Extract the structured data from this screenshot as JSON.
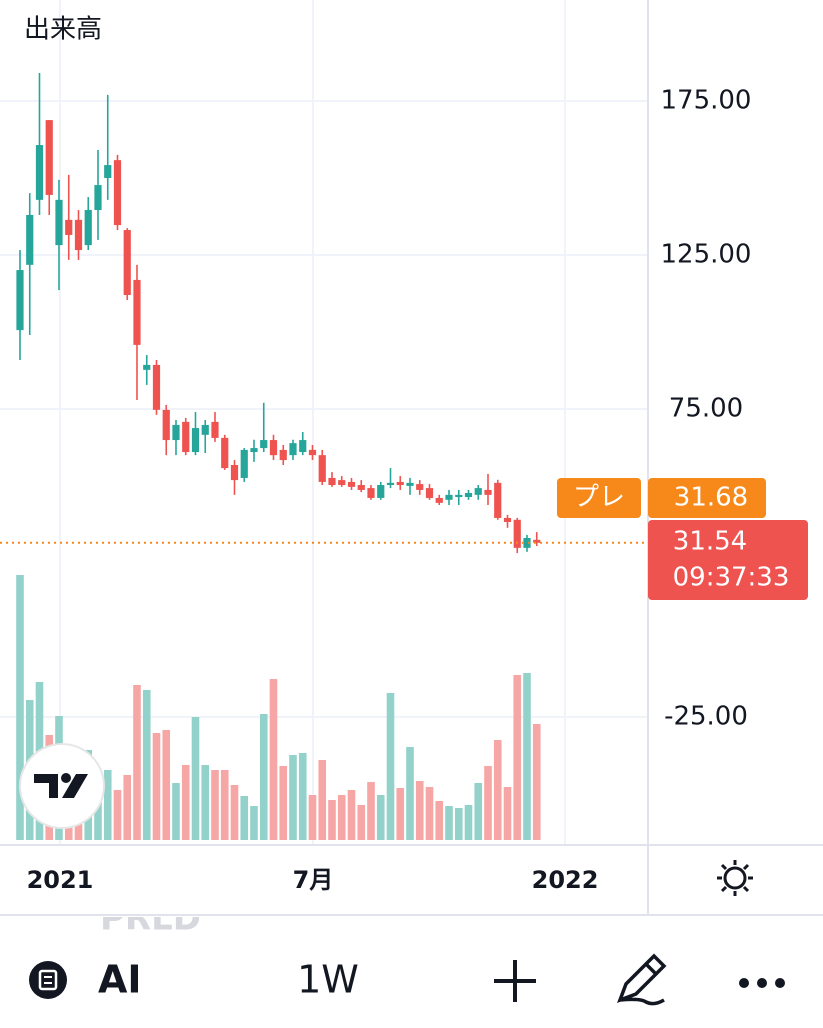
{
  "chart_data": {
    "type": "candlestick",
    "title": "出来高",
    "categories": [
      null,
      null,
      null,
      null,
      null,
      null,
      null,
      null,
      null,
      null,
      null,
      null,
      null,
      null,
      null,
      null,
      null,
      null,
      null,
      null,
      null,
      null,
      null,
      null,
      null,
      null,
      null,
      null,
      null,
      null,
      null,
      null,
      null,
      null,
      null,
      null,
      null,
      null,
      null,
      null,
      null,
      null,
      null,
      null,
      null,
      null,
      null,
      null,
      null,
      null,
      null,
      null,
      null,
      null
    ],
    "open": [
      100.6,
      121.8,
      142.9,
      168.8,
      128.2,
      136.4,
      136.4,
      128.2,
      139.6,
      150,
      155.8,
      133.1,
      116.9,
      87.7,
      89.3,
      74.7,
      64.9,
      70.8,
      61,
      66.6,
      70.8,
      65.6,
      56.8,
      52.6,
      61,
      62.3,
      64.9,
      61.7,
      60,
      61,
      61.7,
      60,
      52.6,
      51.9,
      51.3,
      50.3,
      49.3,
      46.1,
      50.3,
      51.3,
      50,
      50.6,
      49.3,
      46.1,
      45.5,
      46.4,
      46.4,
      47.1,
      48.7,
      51,
      39.6,
      39,
      29.9,
      32.5
    ],
    "high": [
      126.6,
      145.1,
      184.1,
      168.8,
      149.4,
      151,
      139.6,
      143.8,
      159.1,
      177,
      157.5,
      133.7,
      121.8,
      92.5,
      90.9,
      76.3,
      71.4,
      72.1,
      74,
      71.4,
      74,
      66.6,
      58.4,
      62.3,
      65,
      77,
      66.6,
      63.3,
      65,
      67.5,
      63.3,
      61.7,
      54.5,
      53.2,
      52.6,
      51.9,
      50.3,
      51.3,
      55.8,
      53.2,
      52.6,
      51.9,
      50.6,
      47.1,
      48.7,
      48.7,
      48.7,
      50.3,
      53.9,
      52,
      40.6,
      39.6,
      34.1,
      35
    ],
    "low": [
      90.9,
      99,
      138,
      138,
      113.6,
      123.4,
      123.4,
      126.6,
      129.9,
      142.9,
      133.1,
      110.4,
      77.9,
      82.8,
      73.1,
      60,
      60,
      60,
      60,
      60.7,
      64.3,
      55.2,
      47.1,
      51.3,
      57.8,
      61,
      58.4,
      56.8,
      58.4,
      60,
      58.4,
      50.3,
      49.7,
      49.7,
      48.7,
      48,
      45.5,
      45.5,
      49.3,
      48.7,
      47.1,
      47.1,
      45.5,
      43.8,
      43.8,
      43.8,
      45.5,
      45.5,
      43.8,
      39,
      36.4,
      28.2,
      28.6,
      30.5
    ],
    "close": [
      120.1,
      138,
      160.7,
      144.5,
      142.9,
      131.5,
      126.6,
      139.6,
      147.7,
      154.2,
      134.7,
      112,
      95.8,
      89.3,
      74.7,
      64.9,
      69.8,
      61,
      68.8,
      69.8,
      65.6,
      55.8,
      51.9,
      61.7,
      62.3,
      64.9,
      60,
      58.4,
      63.9,
      64.9,
      60,
      51.3,
      50.3,
      50.3,
      49.7,
      48.7,
      46.1,
      50.3,
      51,
      50.3,
      51,
      48.7,
      46.1,
      44.5,
      47.1,
      47.1,
      47.7,
      49.3,
      47.1,
      39.6,
      38.3,
      29.9,
      33.1,
      31.54
    ],
    "volume": [
      265,
      140,
      158,
      105,
      124,
      85,
      80,
      90,
      50,
      70,
      50,
      65,
      155,
      150,
      107,
      110,
      57,
      75,
      123,
      75,
      70,
      70,
      55,
      44,
      34,
      126,
      161,
      74,
      85,
      87,
      45,
      80,
      40,
      45,
      50,
      35,
      58,
      45,
      147,
      52,
      93,
      59,
      53,
      39,
      34,
      32,
      35,
      57,
      74,
      100,
      53,
      165,
      167,
      116
    ],
    "up_color": "#26a69a",
    "down_color": "#ef5350",
    "volume_up_color": "#93d2ca",
    "volume_down_color": "#f5a6a5",
    "xlim": [
      -2.05,
      64.41
    ],
    "ylim": [
      -66.6,
      207.8
    ],
    "xticks": [
      {
        "value": 4.1,
        "label": "2021"
      },
      {
        "value": 30.05,
        "label": "7月"
      },
      {
        "value": 55.9,
        "label": "2022"
      }
    ],
    "yticks": [
      {
        "value": 175,
        "label": "175.00"
      },
      {
        "value": 125,
        "label": "125.00"
      },
      {
        "value": 75,
        "label": "75.00"
      },
      {
        "value": -25,
        "label": "-25.00"
      }
    ],
    "grid": true,
    "countdown": "09:37:33",
    "premarket": {
      "label": "プレ",
      "value": 31.68,
      "value_label": "31.68",
      "color": "#f7891b"
    }
  },
  "toolbar": {
    "symbol": "AI",
    "interval": "1W",
    "watermark": "PRLD"
  }
}
